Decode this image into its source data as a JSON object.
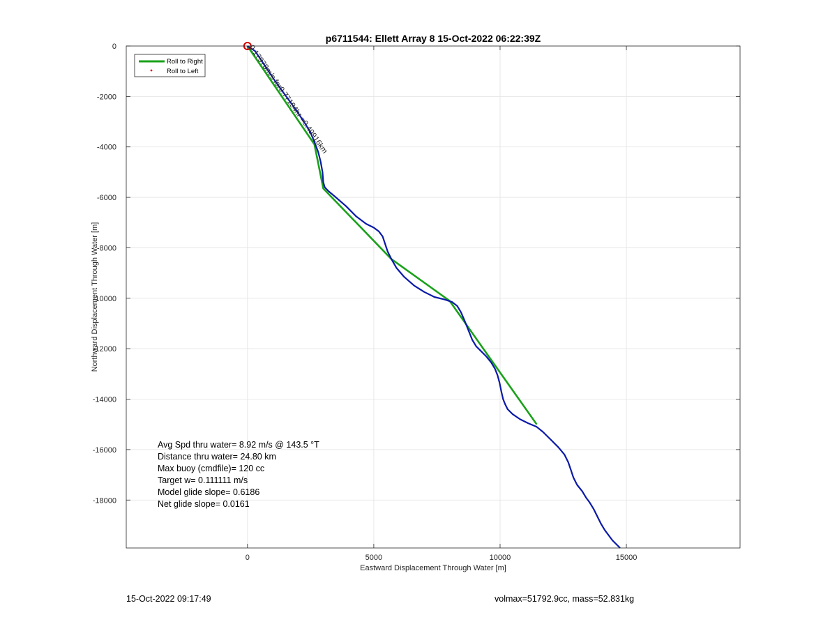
{
  "chart_data": {
    "type": "line",
    "title": "p6711544: Ellett Array 8 15-Oct-2022 06:22:39Z",
    "xlabel": "Eastward Displacement Through Water [m]",
    "ylabel": "Northward Displacement Through Water [m]",
    "xlim": [
      -4800,
      19500
    ],
    "ylim": [
      -19900,
      0
    ],
    "xticks": [
      0,
      5000,
      10000,
      15000
    ],
    "yticks": [
      0,
      -2000,
      -4000,
      -6000,
      -8000,
      -10000,
      -12000,
      -14000,
      -16000,
      -18000
    ],
    "grid": true,
    "legend_position": "top-left",
    "legend": [
      {
        "name": "Roll to Right",
        "color": "#1aa11a",
        "marker": "line"
      },
      {
        "name": "Roll to Left",
        "color": "#e00000",
        "marker": "dot"
      }
    ],
    "series": [
      {
        "name": "Roll to Right",
        "color": "#1aa11a",
        "x": [
          0,
          2650,
          3000,
          5700,
          8000,
          9900,
          11450
        ],
        "y": [
          0,
          -3900,
          -5650,
          -8450,
          -10100,
          -12800,
          -15000
        ]
      },
      {
        "name": "",
        "color": "#0a1aa8",
        "x": [
          0,
          300,
          700,
          1100,
          1500,
          1900,
          2300,
          2500,
          2650,
          2800,
          2900,
          2970,
          3000,
          3060,
          3200,
          3500,
          3900,
          4300,
          4700,
          5000,
          5200,
          5350,
          5450,
          5550,
          5700,
          5900,
          6200,
          6600,
          7000,
          7400,
          7800,
          8100,
          8300,
          8450,
          8580,
          8700,
          8800,
          8900,
          9050,
          9250,
          9450,
          9650,
          9800,
          9900,
          9980,
          10050,
          10120,
          10200,
          10300,
          10500,
          10800,
          11100,
          11450,
          11700,
          12000,
          12300,
          12550,
          12700,
          12800,
          12900,
          13050,
          13250,
          13400,
          13550,
          13700,
          13850,
          14000,
          14150,
          14300,
          14450,
          14600,
          14750
        ],
        "y": [
          0,
          -200,
          -800,
          -1400,
          -1950,
          -2500,
          -3100,
          -3450,
          -3800,
          -4200,
          -4600,
          -5000,
          -5400,
          -5600,
          -5750,
          -6000,
          -6350,
          -6750,
          -7050,
          -7200,
          -7350,
          -7550,
          -7850,
          -8150,
          -8450,
          -8800,
          -9150,
          -9500,
          -9750,
          -9950,
          -10050,
          -10150,
          -10300,
          -10550,
          -10850,
          -11150,
          -11400,
          -11650,
          -11900,
          -12100,
          -12300,
          -12550,
          -12800,
          -13050,
          -13350,
          -13700,
          -14000,
          -14200,
          -14400,
          -14600,
          -14800,
          -14950,
          -15100,
          -15300,
          -15600,
          -15900,
          -16200,
          -16500,
          -16800,
          -17100,
          -17400,
          -17650,
          -17900,
          -18100,
          -18350,
          -18650,
          -18950,
          -19200,
          -19400,
          -19600,
          -19750,
          -19900
        ]
      }
    ],
    "start_marker": {
      "x": 0,
      "y": 0,
      "color": "#d40000"
    },
    "annotation": {
      "text": "0.17978m/s for0.77194hr =0.49916km",
      "x": 60,
      "y": -50,
      "rotation_deg": -55
    },
    "stats_box": [
      "Avg Spd thru water=  8.92 m/s @ 143.5 °T",
      "Distance thru water= 24.80 km",
      "Max buoy (cmdfile)= 120 cc",
      "Target w= 0.111111 m/s",
      "Model glide slope= 0.6186",
      "Net glide slope= 0.0161"
    ]
  },
  "footer": {
    "timestamp": "15-Oct-2022 09:17:49",
    "info": "volmax=51792.9cc, mass=52.831kg"
  }
}
